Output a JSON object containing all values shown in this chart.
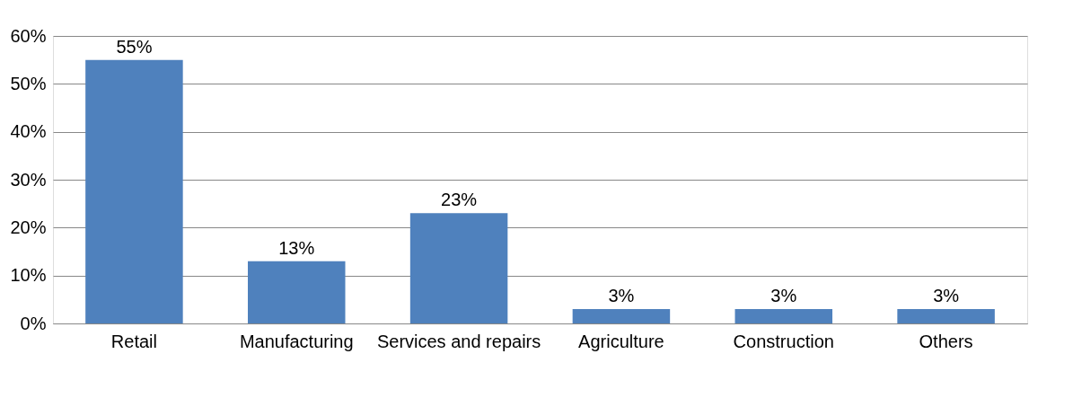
{
  "chart_data": {
    "type": "bar",
    "categories": [
      "Retail",
      "Manufacturing",
      "Services and repairs",
      "Agriculture",
      "Construction",
      "Others"
    ],
    "values": [
      55,
      13,
      23,
      3,
      3,
      3
    ],
    "value_labels": [
      "55%",
      "13%",
      "23%",
      "3%",
      "3%",
      "3%"
    ],
    "color": "#4f81bd",
    "ylim": [
      0,
      60
    ],
    "yticks": [
      {
        "value": 0,
        "label": "0%"
      },
      {
        "value": 10,
        "label": "10%"
      },
      {
        "value": 20,
        "label": "20%"
      },
      {
        "value": 30,
        "label": "30%"
      },
      {
        "value": 40,
        "label": "40%"
      },
      {
        "value": 50,
        "label": "50%"
      },
      {
        "value": 60,
        "label": "60%"
      }
    ],
    "grid": "y"
  }
}
